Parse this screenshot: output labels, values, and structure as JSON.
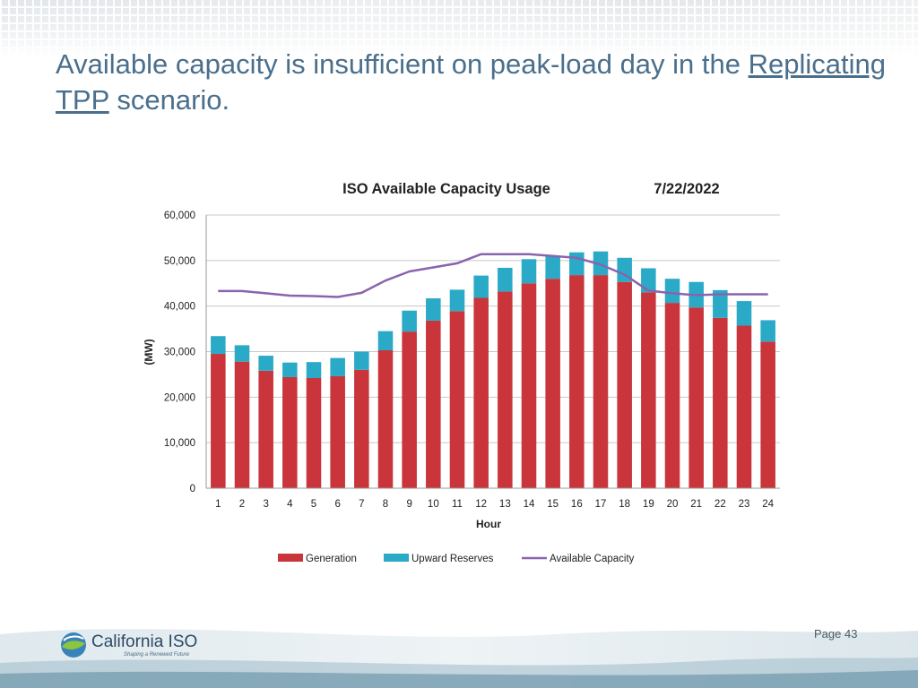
{
  "slide": {
    "title_part1": "Available capacity is insufficient on peak-load day in the ",
    "title_link": "Replicating TPP",
    "title_part2": " scenario.",
    "page_number": "Page 43"
  },
  "logo": {
    "name": "California ISO",
    "tagline": "Shaping a Renewed Future"
  },
  "chart_data": {
    "type": "bar",
    "title": "ISO Available Capacity Usage",
    "date": "7/22/2022",
    "xlabel": "Hour",
    "ylabel": "(MW)",
    "ylim": [
      0,
      60000
    ],
    "yticks": [
      0,
      10000,
      20000,
      30000,
      40000,
      50000,
      60000
    ],
    "ytick_labels": [
      "0",
      "10,000",
      "20,000",
      "30,000",
      "40,000",
      "50,000",
      "60,000"
    ],
    "categories": [
      "1",
      "2",
      "3",
      "4",
      "5",
      "6",
      "7",
      "8",
      "9",
      "10",
      "11",
      "12",
      "13",
      "14",
      "15",
      "16",
      "17",
      "18",
      "19",
      "20",
      "21",
      "22",
      "23",
      "24"
    ],
    "stacked": true,
    "grid": true,
    "legend_position": "bottom",
    "series": [
      {
        "name": "Generation",
        "kind": "bar",
        "color": "#c9353a",
        "values": [
          29500,
          27800,
          25800,
          24400,
          24200,
          24600,
          26000,
          30300,
          34400,
          36800,
          38900,
          41800,
          43200,
          45000,
          46000,
          46800,
          46800,
          45300,
          43000,
          40700,
          39700,
          37400,
          35700,
          32200
        ]
      },
      {
        "name": "Upward Reserves",
        "kind": "bar",
        "color": "#2aaac6",
        "values": [
          3900,
          3600,
          3300,
          3200,
          3500,
          4000,
          4000,
          4200,
          4600,
          4900,
          4700,
          4900,
          5200,
          5300,
          5000,
          5000,
          5200,
          5300,
          5300,
          5300,
          5600,
          6100,
          5400,
          4700
        ]
      },
      {
        "name": "Available Capacity",
        "kind": "line",
        "color": "#8a63ad",
        "values": [
          43300,
          43300,
          42800,
          42300,
          42200,
          42000,
          42900,
          45600,
          47600,
          48500,
          49400,
          51400,
          51400,
          51400,
          51000,
          50600,
          49100,
          46900,
          43400,
          42800,
          42400,
          42600,
          42600,
          42600
        ]
      }
    ]
  },
  "colors": {
    "title": "#4a6f8c",
    "grid": "#c8c8c8"
  }
}
